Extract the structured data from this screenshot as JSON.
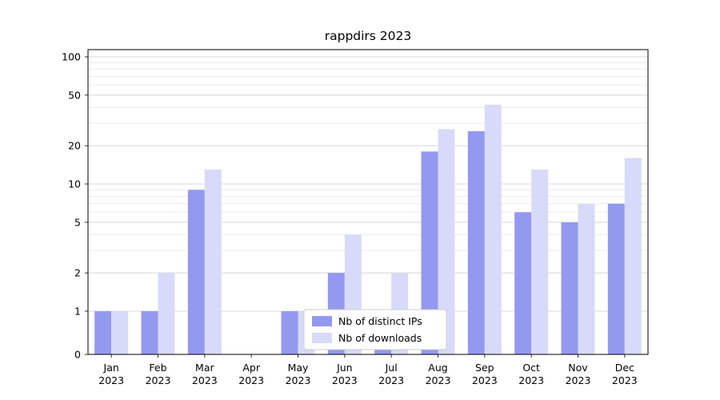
{
  "chart_data": {
    "type": "bar",
    "title": "rappdirs 2023",
    "categories": [
      "Jan",
      "Feb",
      "Mar",
      "Apr",
      "May",
      "Jun",
      "Jul",
      "Aug",
      "Sep",
      "Oct",
      "Nov",
      "Dec"
    ],
    "year_label": "2023",
    "series": [
      {
        "name": "Nb of distinct IPs",
        "color": "#9499f0",
        "values": [
          1,
          1,
          9,
          0,
          1,
          2,
          1,
          18,
          26,
          6,
          5,
          7
        ]
      },
      {
        "name": "Nb of downloads",
        "color": "#d8daf9",
        "values": [
          1,
          2,
          13,
          0,
          1,
          4,
          2,
          27,
          42,
          13,
          7,
          16
        ]
      }
    ],
    "yscale": "log-with-zero",
    "yticks": [
      0,
      1,
      2,
      5,
      10,
      20,
      50,
      100
    ],
    "ylim": [
      0,
      100
    ],
    "grid": "horizontal",
    "legend_position": "bottom-center-inside",
    "colors": {
      "axis": "#000000",
      "major_grid": "#d9d9d9",
      "minor_grid": "#ececec",
      "legend_border": "#cccccc",
      "background": "#ffffff"
    }
  }
}
